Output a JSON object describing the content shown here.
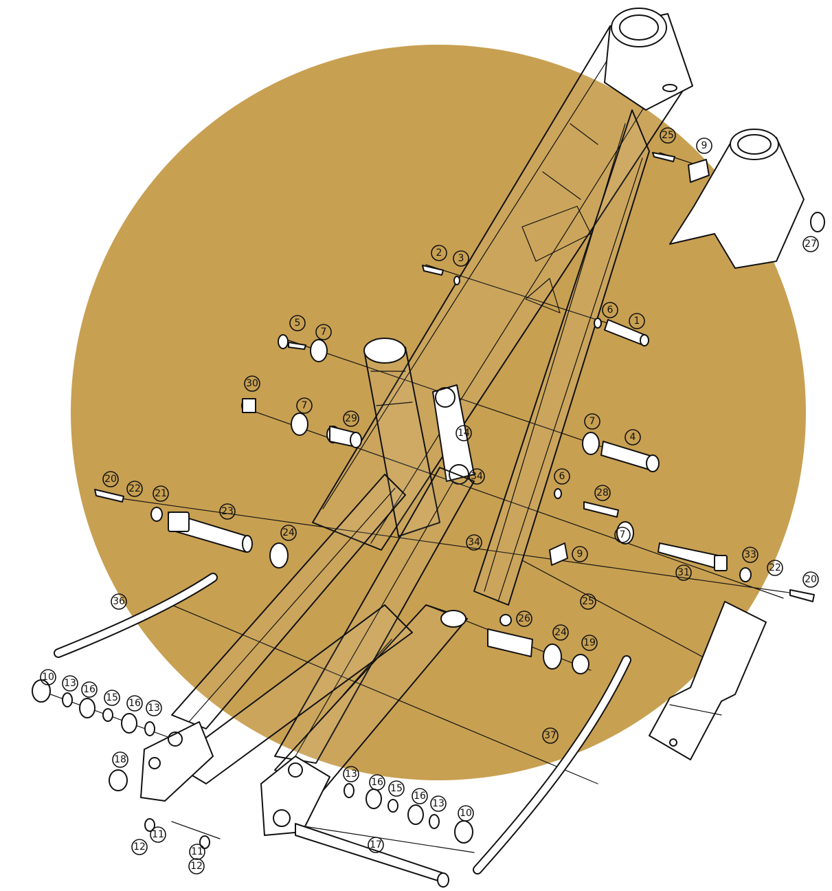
{
  "background_disc_color": "#C8A052",
  "line_color": "#111111",
  "callouts": [
    "1",
    "2",
    "3",
    "4",
    "5",
    "6",
    "6",
    "7",
    "7",
    "7",
    "7",
    "9",
    "9",
    "10",
    "10",
    "11",
    "11",
    "12",
    "12",
    "13",
    "13",
    "13",
    "13",
    "14",
    "15",
    "15",
    "16",
    "16",
    "16",
    "16",
    "17",
    "18",
    "19",
    "20",
    "20",
    "21",
    "22",
    "22",
    "23",
    "24",
    "24",
    "25",
    "25",
    "26",
    "27",
    "28",
    "29",
    "30",
    "31",
    "33",
    "34",
    "34",
    "36",
    "37"
  ]
}
